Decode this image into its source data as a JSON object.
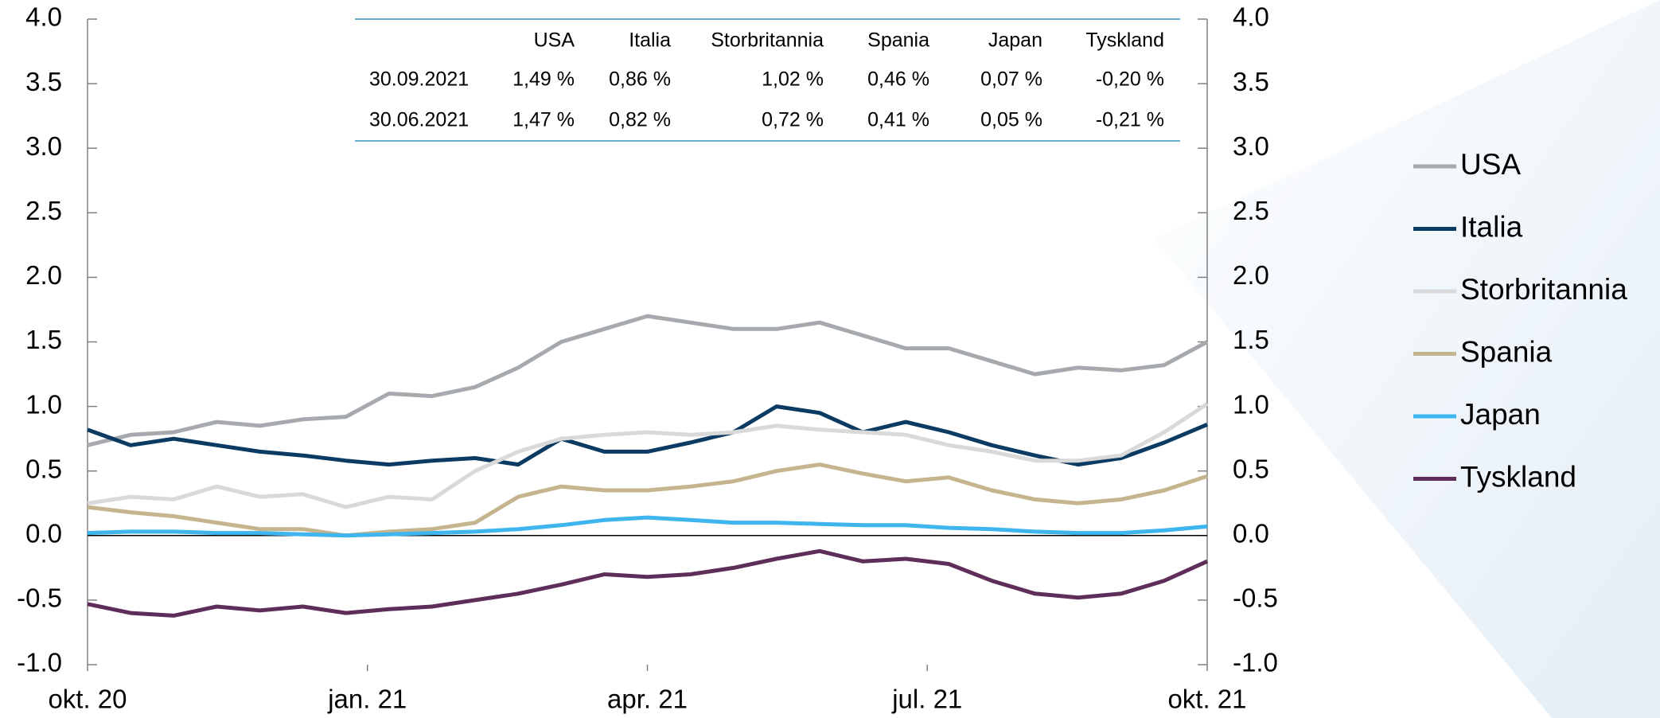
{
  "chart_data": {
    "type": "line",
    "x": [
      0,
      2,
      4,
      6,
      8,
      10,
      12,
      14,
      16,
      18,
      20,
      22,
      24,
      26,
      28,
      30,
      32,
      34,
      36,
      38,
      40,
      42,
      44,
      46,
      48,
      50,
      52
    ],
    "xlim": [
      0,
      52
    ],
    "xticks": [
      {
        "value": 0,
        "label": "okt. 20"
      },
      {
        "value": 13,
        "label": "jan. 21"
      },
      {
        "value": 26,
        "label": "apr. 21"
      },
      {
        "value": 39,
        "label": "jul. 21"
      },
      {
        "value": 52,
        "label": "okt. 21"
      }
    ],
    "ylim": [
      -1,
      4
    ],
    "yticks": [
      {
        "value": -1,
        "label": "-1.0"
      },
      {
        "value": -0.5,
        "label": "-0.5"
      },
      {
        "value": 0,
        "label": "0.0"
      },
      {
        "value": 0.5,
        "label": "0.5"
      },
      {
        "value": 1,
        "label": "1.0"
      },
      {
        "value": 1.5,
        "label": "1.5"
      },
      {
        "value": 2,
        "label": "2.0"
      },
      {
        "value": 2.5,
        "label": "2.5"
      },
      {
        "value": 3,
        "label": "3.0"
      },
      {
        "value": 3.5,
        "label": "3.5"
      },
      {
        "value": 4,
        "label": "4.0"
      }
    ],
    "y2lim": [
      -1,
      4
    ],
    "y2ticks": [
      {
        "value": -1,
        "label": "-1.0"
      },
      {
        "value": -0.5,
        "label": "-0.5"
      },
      {
        "value": 0,
        "label": "0.0"
      },
      {
        "value": 0.5,
        "label": "0.5"
      },
      {
        "value": 1,
        "label": "1.0"
      },
      {
        "value": 1.5,
        "label": "1.5"
      },
      {
        "value": 2,
        "label": "2.0"
      },
      {
        "value": 2.5,
        "label": "2.5"
      },
      {
        "value": 3,
        "label": "3.0"
      },
      {
        "value": 3.5,
        "label": "3.5"
      },
      {
        "value": 4,
        "label": "4.0"
      }
    ],
    "legend": "right",
    "series": [
      {
        "name": "USA",
        "color": "#a6a9ae",
        "values": [
          0.7,
          0.78,
          0.8,
          0.88,
          0.85,
          0.9,
          0.92,
          1.1,
          1.08,
          1.15,
          1.3,
          1.5,
          1.6,
          1.7,
          1.65,
          1.6,
          1.6,
          1.65,
          1.55,
          1.45,
          1.45,
          1.35,
          1.25,
          1.3,
          1.28,
          1.32,
          1.5
        ]
      },
      {
        "name": "Italia",
        "color": "#0b3a62",
        "values": [
          0.82,
          0.7,
          0.75,
          0.7,
          0.65,
          0.62,
          0.58,
          0.55,
          0.58,
          0.6,
          0.55,
          0.75,
          0.65,
          0.65,
          0.72,
          0.8,
          1.0,
          0.95,
          0.8,
          0.88,
          0.8,
          0.7,
          0.62,
          0.55,
          0.6,
          0.72,
          0.86
        ]
      },
      {
        "name": "Storbritannia",
        "color": "#d9d9d9",
        "values": [
          0.25,
          0.3,
          0.28,
          0.38,
          0.3,
          0.32,
          0.22,
          0.3,
          0.28,
          0.5,
          0.65,
          0.75,
          0.78,
          0.8,
          0.78,
          0.8,
          0.85,
          0.82,
          0.8,
          0.78,
          0.7,
          0.65,
          0.58,
          0.58,
          0.62,
          0.8,
          1.02
        ]
      },
      {
        "name": "Spania",
        "color": "#c5b58f",
        "values": [
          0.22,
          0.18,
          0.15,
          0.1,
          0.05,
          0.05,
          0,
          0.03,
          0.05,
          0.1,
          0.3,
          0.38,
          0.35,
          0.35,
          0.38,
          0.42,
          0.5,
          0.55,
          0.48,
          0.42,
          0.45,
          0.35,
          0.28,
          0.25,
          0.28,
          0.35,
          0.46
        ]
      },
      {
        "name": "Japan",
        "color": "#3fb5f0",
        "values": [
          0.02,
          0.03,
          0.03,
          0.02,
          0.02,
          0.01,
          0,
          0.01,
          0.02,
          0.03,
          0.05,
          0.08,
          0.12,
          0.14,
          0.12,
          0.1,
          0.1,
          0.09,
          0.08,
          0.08,
          0.06,
          0.05,
          0.03,
          0.02,
          0.02,
          0.04,
          0.07
        ]
      },
      {
        "name": "Tyskland",
        "color": "#5e2d5a",
        "values": [
          -0.53,
          -0.6,
          -0.62,
          -0.55,
          -0.58,
          -0.55,
          -0.6,
          -0.57,
          -0.55,
          -0.5,
          -0.45,
          -0.38,
          -0.3,
          -0.32,
          -0.3,
          -0.25,
          -0.18,
          -0.12,
          -0.2,
          -0.18,
          -0.22,
          -0.35,
          -0.45,
          -0.48,
          -0.45,
          -0.35,
          -0.2
        ]
      }
    ]
  },
  "table": {
    "header": [
      "USA",
      "Italia",
      "Storbritannia",
      "Spania",
      "Japan",
      "Tyskland"
    ],
    "rows": [
      [
        "30.09.2021",
        "1,49 %",
        "0,86 %",
        "1,02 %",
        "0,46 %",
        "0,07 %",
        "-0,20 %"
      ],
      [
        "30.06.2021",
        "1,47 %",
        "0,82 %",
        "0,72 %",
        "0,41 %",
        "0,05 %",
        "-0,21 %"
      ]
    ]
  }
}
